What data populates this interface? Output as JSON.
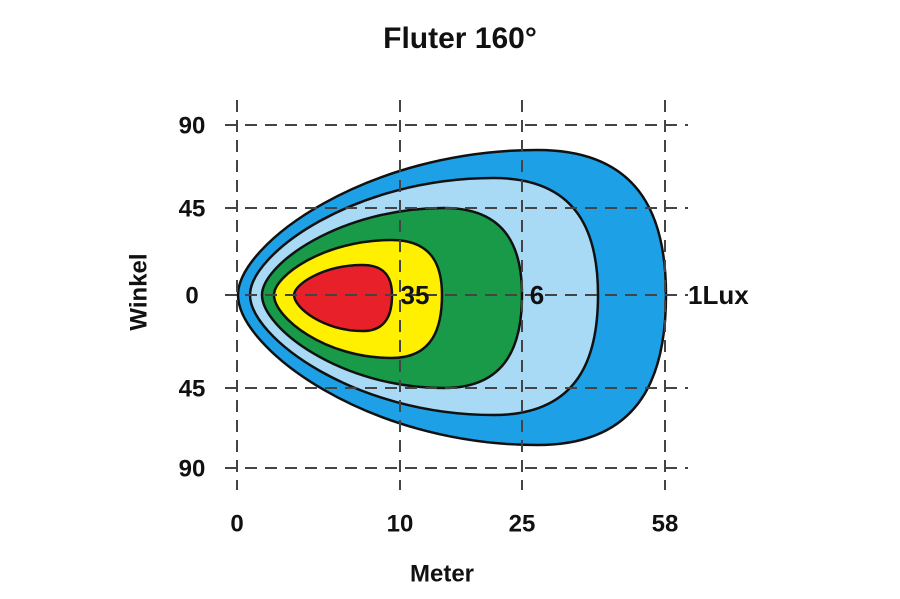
{
  "title": "Fluter 160°",
  "x_axis": {
    "label": "Meter",
    "ticks": [
      "0",
      "10",
      "25",
      "58"
    ]
  },
  "y_axis": {
    "label": "Winkel",
    "ticks": [
      "90",
      "45",
      "0",
      "45",
      "90"
    ]
  },
  "contour_labels": [
    "35",
    "6",
    "1Lux"
  ]
}
